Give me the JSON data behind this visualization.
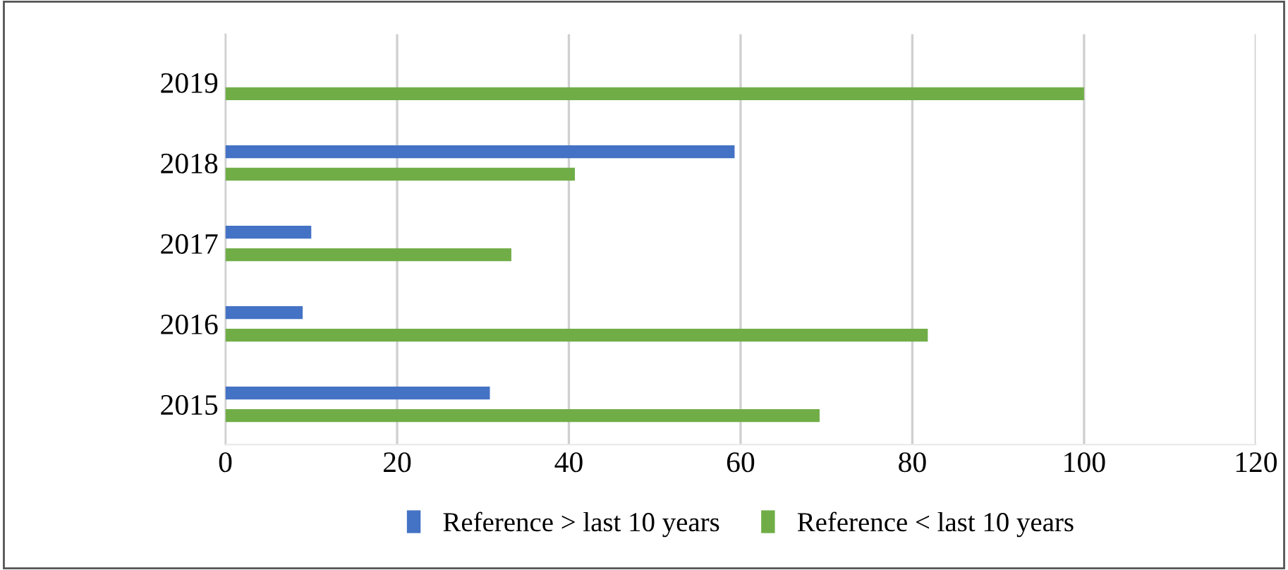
{
  "chart_data": {
    "type": "bar",
    "orientation": "horizontal",
    "categories": [
      "2019",
      "2018",
      "2017",
      "2016",
      "2015"
    ],
    "series": [
      {
        "name": "Reference > last 10 years",
        "color": "#4472c4",
        "values": [
          0,
          59.3,
          10,
          9,
          30.8
        ]
      },
      {
        "name": "Reference < last 10 years",
        "color": "#70ad47",
        "values": [
          100,
          40.7,
          33.3,
          81.8,
          69.2
        ]
      }
    ],
    "xlim": [
      0,
      120
    ],
    "xticks": [
      0,
      20,
      40,
      60,
      80,
      100,
      120
    ],
    "grid": "x",
    "legend": "bottom"
  }
}
